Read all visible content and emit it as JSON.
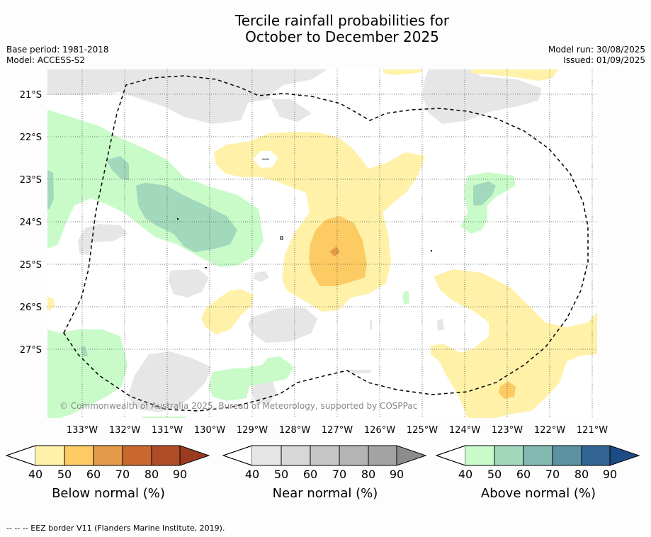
{
  "title_line1": "Tercile rainfall probabilities for",
  "title_line2": "October to December 2025",
  "base_period": "Base period: 1981-2018",
  "model": "Model: ACCESS-S2",
  "model_run": "Model run: 30/08/2025",
  "issued": "Issued: 01/09/2025",
  "copyright": "© Commonwealth of Australia 2025, Bureau of Meteorology, supported by COSPPac",
  "lat_labels": [
    "21°S",
    "22°S",
    "23°S",
    "24°S",
    "25°S",
    "26°S",
    "27°S"
  ],
  "lon_labels": [
    "133°W",
    "132°W",
    "131°W",
    "130°W",
    "129°W",
    "128°W",
    "127°W",
    "126°W",
    "125°W",
    "124°W",
    "123°W",
    "122°W",
    "121°W"
  ],
  "colorbars": [
    {
      "title": "Below normal (%)",
      "ticks": [
        "40",
        "50",
        "60",
        "70",
        "80",
        "90"
      ],
      "colors": [
        "#fff1a8",
        "#fdcb63",
        "#e39b49",
        "#cb6830",
        "#b04c27",
        "#9a3a1e"
      ]
    },
    {
      "title": "Near normal (%)",
      "ticks": [
        "40",
        "50",
        "60",
        "70",
        "80",
        "90"
      ],
      "colors": [
        "#e6e6e6",
        "#d7d7d7",
        "#c6c6c6",
        "#b4b4b4",
        "#a3a3a3",
        "#8c8c8c"
      ]
    },
    {
      "title": "Above normal (%)",
      "ticks": [
        "40",
        "50",
        "60",
        "70",
        "80",
        "90"
      ],
      "colors": [
        "#c9fbc9",
        "#a2d8bc",
        "#84b9b2",
        "#5b91a0",
        "#326494",
        "#1e4b86"
      ]
    }
  ],
  "footer": "--  --  -- EEZ border V11 (Flanders Marine Institute, 2019)."
}
